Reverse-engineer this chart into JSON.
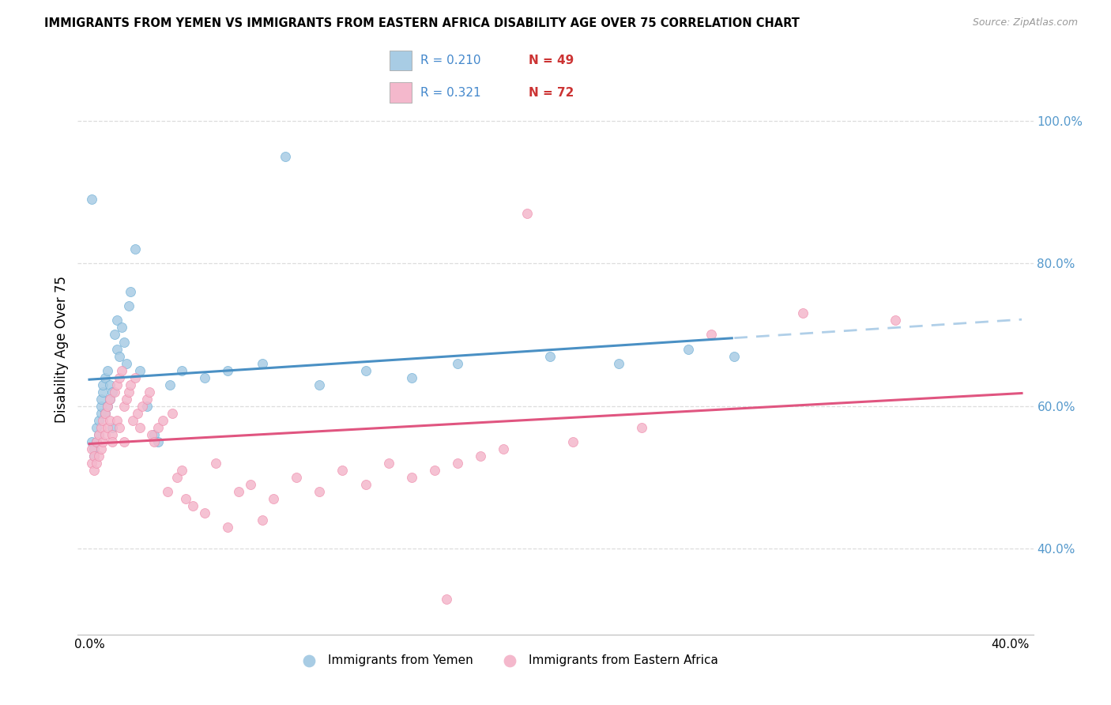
{
  "title": "IMMIGRANTS FROM YEMEN VS IMMIGRANTS FROM EASTERN AFRICA DISABILITY AGE OVER 75 CORRELATION CHART",
  "source": "Source: ZipAtlas.com",
  "ylabel": "Disability Age Over 75",
  "legend_r1": "R = 0.210",
  "legend_n1": "N = 49",
  "legend_r2": "R = 0.321",
  "legend_n2": "N = 72",
  "color_blue": "#a8cce4",
  "color_blue_dark": "#6aadd5",
  "color_blue_line": "#4a90c4",
  "color_pink": "#f4b8cc",
  "color_pink_dark": "#f08aaa",
  "color_pink_line": "#e05580",
  "color_dashed_line": "#b0cfe8",
  "label1": "Immigrants from Yemen",
  "label2": "Immigrants from Eastern Africa",
  "right_tick_color": "#5599cc",
  "grid_color": "#dddddd",
  "yemen_x": [
    0.001,
    0.001,
    0.002,
    0.002,
    0.003,
    0.003,
    0.004,
    0.004,
    0.005,
    0.005,
    0.005,
    0.006,
    0.006,
    0.007,
    0.007,
    0.008,
    0.008,
    0.009,
    0.009,
    0.01,
    0.01,
    0.011,
    0.012,
    0.012,
    0.013,
    0.014,
    0.015,
    0.016,
    0.017,
    0.018,
    0.02,
    0.022,
    0.025,
    0.028,
    0.03,
    0.035,
    0.04,
    0.05,
    0.06,
    0.075,
    0.085,
    0.1,
    0.12,
    0.14,
    0.16,
    0.2,
    0.23,
    0.26,
    0.28
  ],
  "yemen_y": [
    0.89,
    0.55,
    0.54,
    0.53,
    0.57,
    0.55,
    0.56,
    0.58,
    0.59,
    0.6,
    0.61,
    0.62,
    0.63,
    0.59,
    0.64,
    0.65,
    0.6,
    0.61,
    0.63,
    0.57,
    0.62,
    0.7,
    0.72,
    0.68,
    0.67,
    0.71,
    0.69,
    0.66,
    0.74,
    0.76,
    0.82,
    0.65,
    0.6,
    0.56,
    0.55,
    0.63,
    0.65,
    0.64,
    0.65,
    0.66,
    0.95,
    0.63,
    0.65,
    0.64,
    0.66,
    0.67,
    0.66,
    0.68,
    0.67
  ],
  "eastern_x": [
    0.001,
    0.001,
    0.002,
    0.002,
    0.003,
    0.003,
    0.004,
    0.004,
    0.005,
    0.005,
    0.006,
    0.006,
    0.007,
    0.007,
    0.008,
    0.008,
    0.009,
    0.009,
    0.01,
    0.01,
    0.011,
    0.012,
    0.012,
    0.013,
    0.013,
    0.014,
    0.015,
    0.015,
    0.016,
    0.017,
    0.018,
    0.019,
    0.02,
    0.021,
    0.022,
    0.023,
    0.025,
    0.026,
    0.027,
    0.028,
    0.03,
    0.032,
    0.034,
    0.036,
    0.038,
    0.04,
    0.042,
    0.045,
    0.05,
    0.055,
    0.06,
    0.065,
    0.07,
    0.075,
    0.08,
    0.09,
    0.1,
    0.11,
    0.12,
    0.13,
    0.14,
    0.15,
    0.155,
    0.16,
    0.17,
    0.18,
    0.19,
    0.21,
    0.24,
    0.27,
    0.31,
    0.35
  ],
  "eastern_y": [
    0.54,
    0.52,
    0.53,
    0.51,
    0.55,
    0.52,
    0.56,
    0.53,
    0.57,
    0.54,
    0.58,
    0.55,
    0.59,
    0.56,
    0.6,
    0.57,
    0.61,
    0.58,
    0.56,
    0.55,
    0.62,
    0.63,
    0.58,
    0.64,
    0.57,
    0.65,
    0.6,
    0.55,
    0.61,
    0.62,
    0.63,
    0.58,
    0.64,
    0.59,
    0.57,
    0.6,
    0.61,
    0.62,
    0.56,
    0.55,
    0.57,
    0.58,
    0.48,
    0.59,
    0.5,
    0.51,
    0.47,
    0.46,
    0.45,
    0.52,
    0.43,
    0.48,
    0.49,
    0.44,
    0.47,
    0.5,
    0.48,
    0.51,
    0.49,
    0.52,
    0.5,
    0.51,
    0.33,
    0.52,
    0.53,
    0.54,
    0.87,
    0.55,
    0.57,
    0.7,
    0.73,
    0.72
  ],
  "xlim_data": [
    -0.005,
    0.41
  ],
  "ylim_data": [
    0.28,
    1.08
  ],
  "yticks": [
    0.4,
    0.6,
    0.8,
    1.0
  ],
  "ytick_labels": [
    "40.0%",
    "60.0%",
    "80.0%",
    "100.0%"
  ],
  "xtick_vals": [
    0.0,
    0.4
  ],
  "xtick_labels": [
    "0.0%",
    "40.0%"
  ]
}
